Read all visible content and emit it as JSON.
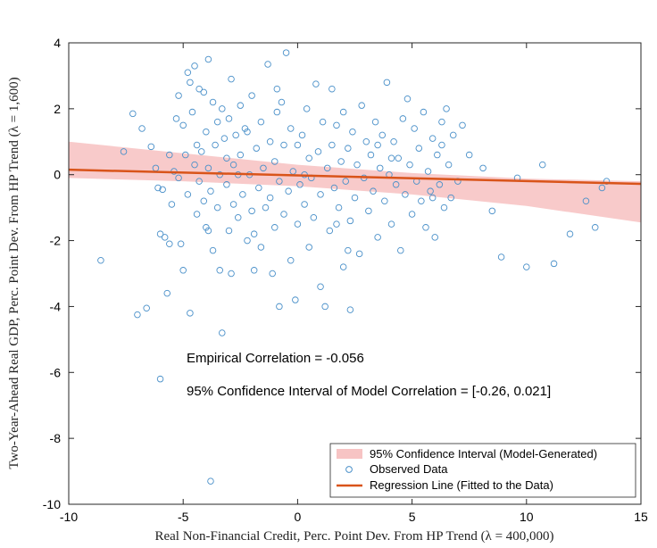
{
  "chart_data": {
    "type": "scatter",
    "xlabel": "Real Non-Financial Credit, Perc. Point Dev. From HP Trend (λ = 400,000)",
    "ylabel": "Two-Year-Ahead Real GDP, Perc. Point Dev. From HP Trend (λ = 1,600)",
    "xlim": [
      -10,
      15
    ],
    "ylim": [
      -10,
      4
    ],
    "xticks": [
      -10,
      -5,
      0,
      5,
      10,
      15
    ],
    "yticks": [
      -10,
      -8,
      -6,
      -4,
      -2,
      0,
      2,
      4
    ],
    "annotations": [
      "Empirical Correlation = -0.056",
      "95% Confidence Interval of Model Correlation = [-0.26, 0.021]"
    ],
    "legend": {
      "location": "bottom-right",
      "entries": [
        "95% Confidence Interval (Model-Generated)",
        "Observed Data",
        "Regression Line (Fitted to the Data)"
      ]
    },
    "regression_line": {
      "x": [
        -10,
        15
      ],
      "y": [
        0.15,
        -0.28
      ]
    },
    "confidence_band": {
      "x": [
        -10,
        -5,
        0,
        5,
        10,
        15
      ],
      "upper": [
        1.0,
        0.65,
        0.3,
        0.05,
        -0.12,
        -0.2
      ],
      "lower": [
        -0.1,
        -0.2,
        -0.35,
        -0.6,
        -0.95,
        -1.45
      ]
    },
    "series": [
      {
        "name": "Observed Data",
        "points": [
          [
            -8.6,
            -2.6
          ],
          [
            -7.6,
            0.7
          ],
          [
            -7.2,
            1.85
          ],
          [
            -7.0,
            -4.25
          ],
          [
            -6.8,
            1.4
          ],
          [
            -6.6,
            -4.05
          ],
          [
            -6.4,
            0.85
          ],
          [
            -6.2,
            0.2
          ],
          [
            -6.1,
            -0.4
          ],
          [
            -6.0,
            -1.8
          ],
          [
            -6.0,
            -6.2
          ],
          [
            -5.9,
            -0.45
          ],
          [
            -5.8,
            -1.9
          ],
          [
            -5.7,
            -3.6
          ],
          [
            -5.6,
            0.6
          ],
          [
            -5.5,
            -0.9
          ],
          [
            -5.4,
            0.1
          ],
          [
            -5.3,
            1.7
          ],
          [
            -5.2,
            2.4
          ],
          [
            -5.2,
            -0.1
          ],
          [
            -5.1,
            -2.1
          ],
          [
            -5.0,
            -2.9
          ],
          [
            -5.0,
            1.5
          ],
          [
            -4.9,
            0.6
          ],
          [
            -4.8,
            3.1
          ],
          [
            -4.8,
            -0.6
          ],
          [
            -4.7,
            2.8
          ],
          [
            -4.7,
            -4.2
          ],
          [
            -4.6,
            1.9
          ],
          [
            -4.5,
            3.3
          ],
          [
            -4.5,
            0.3
          ],
          [
            -4.4,
            -1.2
          ],
          [
            -4.3,
            2.6
          ],
          [
            -4.3,
            -0.2
          ],
          [
            -4.2,
            0.7
          ],
          [
            -4.1,
            -0.8
          ],
          [
            -4.0,
            1.3
          ],
          [
            -4.0,
            -1.6
          ],
          [
            -3.9,
            3.5
          ],
          [
            -3.9,
            0.2
          ],
          [
            -3.8,
            -0.5
          ],
          [
            -3.7,
            2.2
          ],
          [
            -3.7,
            -2.3
          ],
          [
            -3.6,
            0.9
          ],
          [
            -3.5,
            -1.0
          ],
          [
            -3.5,
            1.6
          ],
          [
            -3.4,
            -2.9
          ],
          [
            -3.4,
            0.0
          ],
          [
            -3.3,
            2.0
          ],
          [
            -3.3,
            -4.8
          ],
          [
            -3.2,
            1.1
          ],
          [
            -3.1,
            -0.3
          ],
          [
            -3.1,
            0.5
          ],
          [
            -3.0,
            -1.7
          ],
          [
            -3.0,
            1.7
          ],
          [
            -2.9,
            2.9
          ],
          [
            -2.9,
            -3.0
          ],
          [
            -2.8,
            0.3
          ],
          [
            -2.8,
            -0.9
          ],
          [
            -2.7,
            1.2
          ],
          [
            -2.6,
            -1.3
          ],
          [
            -2.5,
            0.6
          ],
          [
            -2.5,
            2.1
          ],
          [
            -2.4,
            -0.6
          ],
          [
            -2.3,
            1.4
          ],
          [
            -2.2,
            -2.0
          ],
          [
            -2.1,
            0.0
          ],
          [
            -2.0,
            2.4
          ],
          [
            -2.0,
            -1.1
          ],
          [
            -1.9,
            -2.9
          ],
          [
            -1.8,
            0.8
          ],
          [
            -1.7,
            -0.4
          ],
          [
            -1.6,
            1.6
          ],
          [
            -1.6,
            -2.2
          ],
          [
            -1.5,
            0.2
          ],
          [
            -1.4,
            -1.0
          ],
          [
            -1.3,
            3.35
          ],
          [
            -1.2,
            -0.7
          ],
          [
            -1.2,
            1.0
          ],
          [
            -1.1,
            -3.0
          ],
          [
            -1.0,
            0.4
          ],
          [
            -1.0,
            -1.6
          ],
          [
            -0.9,
            1.9
          ],
          [
            -0.8,
            -0.2
          ],
          [
            -0.8,
            -4.0
          ],
          [
            -0.7,
            2.2
          ],
          [
            -0.6,
            -1.2
          ],
          [
            -0.6,
            0.9
          ],
          [
            -0.5,
            3.7
          ],
          [
            -0.4,
            -0.5
          ],
          [
            -0.3,
            1.4
          ],
          [
            -0.3,
            -2.6
          ],
          [
            -0.2,
            0.1
          ],
          [
            -0.1,
            -3.8
          ],
          [
            0.0,
            0.9
          ],
          [
            0.0,
            -1.5
          ],
          [
            0.1,
            -0.3
          ],
          [
            0.2,
            1.2
          ],
          [
            0.3,
            -0.9
          ],
          [
            0.4,
            2.0
          ],
          [
            0.5,
            -2.2
          ],
          [
            0.5,
            0.5
          ],
          [
            0.6,
            -0.1
          ],
          [
            0.7,
            -1.3
          ],
          [
            0.8,
            2.75
          ],
          [
            0.9,
            0.7
          ],
          [
            1.0,
            -0.6
          ],
          [
            1.0,
            -3.4
          ],
          [
            1.1,
            1.6
          ],
          [
            1.2,
            -4.0
          ],
          [
            1.3,
            0.2
          ],
          [
            1.4,
            -1.7
          ],
          [
            1.5,
            2.6
          ],
          [
            1.5,
            0.9
          ],
          [
            1.6,
            -0.4
          ],
          [
            1.7,
            1.5
          ],
          [
            1.8,
            -1.0
          ],
          [
            1.9,
            0.4
          ],
          [
            2.0,
            -2.8
          ],
          [
            2.0,
            1.9
          ],
          [
            2.1,
            -0.2
          ],
          [
            2.2,
            0.8
          ],
          [
            2.3,
            -4.1
          ],
          [
            2.3,
            -1.4
          ],
          [
            2.4,
            1.3
          ],
          [
            2.5,
            -0.7
          ],
          [
            2.6,
            0.3
          ],
          [
            2.7,
            -2.4
          ],
          [
            2.8,
            2.1
          ],
          [
            2.9,
            -0.1
          ],
          [
            3.0,
            1.0
          ],
          [
            3.1,
            -1.1
          ],
          [
            3.2,
            0.6
          ],
          [
            3.3,
            -0.5
          ],
          [
            3.4,
            1.6
          ],
          [
            3.5,
            -1.9
          ],
          [
            3.6,
            0.2
          ],
          [
            3.7,
            1.2
          ],
          [
            3.8,
            -0.8
          ],
          [
            3.9,
            2.8
          ],
          [
            4.0,
            0.0
          ],
          [
            4.1,
            -1.5
          ],
          [
            4.2,
            1.0
          ],
          [
            4.3,
            -0.3
          ],
          [
            4.4,
            0.5
          ],
          [
            4.5,
            -2.3
          ],
          [
            4.6,
            1.7
          ],
          [
            4.7,
            -0.6
          ],
          [
            4.8,
            2.3
          ],
          [
            4.9,
            0.3
          ],
          [
            5.0,
            -1.2
          ],
          [
            5.1,
            1.4
          ],
          [
            5.2,
            -0.2
          ],
          [
            5.3,
            0.8
          ],
          [
            5.4,
            -0.8
          ],
          [
            5.5,
            1.9
          ],
          [
            5.6,
            -1.6
          ],
          [
            5.7,
            0.1
          ],
          [
            5.8,
            -0.5
          ],
          [
            5.9,
            1.1
          ],
          [
            6.0,
            -1.9
          ],
          [
            6.1,
            0.6
          ],
          [
            6.2,
            -0.3
          ],
          [
            6.3,
            1.6
          ],
          [
            6.4,
            -1.0
          ],
          [
            6.5,
            2.0
          ],
          [
            6.6,
            0.3
          ],
          [
            6.7,
            -0.7
          ],
          [
            6.8,
            1.2
          ],
          [
            7.0,
            -0.2
          ],
          [
            7.2,
            1.5
          ],
          [
            7.5,
            0.6
          ],
          [
            8.1,
            0.2
          ],
          [
            8.5,
            -1.1
          ],
          [
            8.9,
            -2.5
          ],
          [
            9.6,
            -0.1
          ],
          [
            10.0,
            -2.8
          ],
          [
            10.7,
            0.3
          ],
          [
            11.2,
            -2.7
          ],
          [
            11.9,
            -1.8
          ],
          [
            12.6,
            -0.8
          ],
          [
            13.0,
            -1.6
          ],
          [
            13.3,
            -0.4
          ],
          [
            13.5,
            -0.2
          ],
          [
            -3.8,
            -9.3
          ],
          [
            -2.6,
            0.0
          ],
          [
            -4.4,
            0.9
          ],
          [
            -3.9,
            -1.7
          ],
          [
            -5.6,
            -2.1
          ],
          [
            -4.1,
            2.5
          ],
          [
            -1.9,
            -1.8
          ],
          [
            0.3,
            0.0
          ],
          [
            1.7,
            -1.5
          ],
          [
            2.2,
            -2.3
          ],
          [
            3.5,
            0.9
          ],
          [
            4.1,
            0.5
          ],
          [
            -2.2,
            1.3
          ],
          [
            -0.9,
            2.6
          ],
          [
            5.9,
            -0.7
          ],
          [
            6.3,
            0.9
          ]
        ]
      }
    ]
  }
}
